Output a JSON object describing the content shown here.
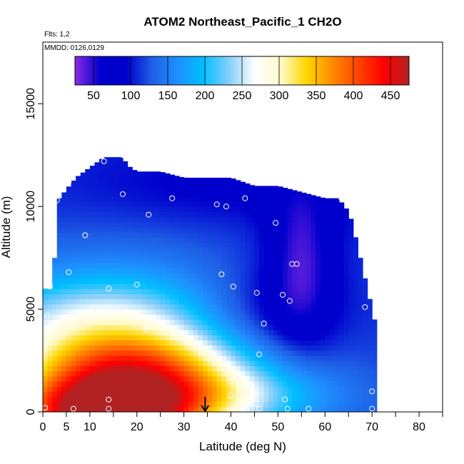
{
  "chart_data": {
    "type": "heatmap",
    "title": "ATOM2 Northeast_Pacific_1 CH2O",
    "flights_label": "Flts: 1,2",
    "dates_label": "MMDD: 0126,0129",
    "xlabel": "Latitude (deg N)",
    "ylabel": "Altitude (m)",
    "xlim": [
      0,
      85
    ],
    "ylim": [
      0,
      18000
    ],
    "x_ticks": [
      "0",
      "5",
      "10",
      "20",
      "30",
      "40",
      "50",
      "60",
      "70",
      "80"
    ],
    "y_ticks": [
      "0",
      "5000",
      "10000",
      "15000"
    ],
    "colorbar": {
      "ticks": [
        "50",
        "100",
        "150",
        "200",
        "250",
        "300",
        "350",
        "400",
        "450"
      ],
      "range": [
        25,
        475
      ],
      "colors": [
        "#8a2be2",
        "#0000cd",
        "#0000cd",
        "#1e5fe6",
        "#1e90ff",
        "#00bfff",
        "#87cefa",
        "#ffffff",
        "#fffacd",
        "#ffd700",
        "#ff8c00",
        "#ff4500",
        "#ff0000",
        "#b22222"
      ]
    },
    "arrow_latitude": 34.5,
    "observation_points": [
      {
        "lat": 13,
        "alt": 12200
      },
      {
        "lat": 17,
        "alt": 12500
      },
      {
        "lat": 3,
        "alt": 11200
      },
      {
        "lat": 4,
        "alt": 11200
      },
      {
        "lat": 5.5,
        "alt": 11200
      },
      {
        "lat": 3,
        "alt": 10300
      },
      {
        "lat": 17,
        "alt": 10600
      },
      {
        "lat": 27.5,
        "alt": 10400
      },
      {
        "lat": 43,
        "alt": 10400
      },
      {
        "lat": 37,
        "alt": 10100
      },
      {
        "lat": 39,
        "alt": 10000
      },
      {
        "lat": 63.5,
        "alt": 10400
      },
      {
        "lat": 22.5,
        "alt": 9600
      },
      {
        "lat": 49.5,
        "alt": 9200
      },
      {
        "lat": 9,
        "alt": 8600
      },
      {
        "lat": 53,
        "alt": 7200
      },
      {
        "lat": 54,
        "alt": 7200
      },
      {
        "lat": 5.5,
        "alt": 6800
      },
      {
        "lat": 38,
        "alt": 6700
      },
      {
        "lat": 1.5,
        "alt": 6100
      },
      {
        "lat": 20,
        "alt": 6200
      },
      {
        "lat": 14,
        "alt": 6000
      },
      {
        "lat": 40.5,
        "alt": 6100
      },
      {
        "lat": 45.5,
        "alt": 5800
      },
      {
        "lat": 51,
        "alt": 5700
      },
      {
        "lat": 52.5,
        "alt": 5400
      },
      {
        "lat": 68.5,
        "alt": 5100
      },
      {
        "lat": 1,
        "alt": 4700
      },
      {
        "lat": 25,
        "alt": 4400
      },
      {
        "lat": 47,
        "alt": 4300
      },
      {
        "lat": 22,
        "alt": 4000
      },
      {
        "lat": 46,
        "alt": 2800
      },
      {
        "lat": 40,
        "alt": 1500
      },
      {
        "lat": 70,
        "alt": 1000
      },
      {
        "lat": 40,
        "alt": 800
      },
      {
        "lat": 14,
        "alt": 600
      },
      {
        "lat": 51.5,
        "alt": 600
      },
      {
        "lat": 0.5,
        "alt": 200
      },
      {
        "lat": 6.5,
        "alt": 150
      },
      {
        "lat": 14,
        "alt": 150
      },
      {
        "lat": 46,
        "alt": 150
      },
      {
        "lat": 52,
        "alt": 150
      },
      {
        "lat": 56.5,
        "alt": 150
      },
      {
        "lat": 70,
        "alt": 150
      }
    ]
  }
}
